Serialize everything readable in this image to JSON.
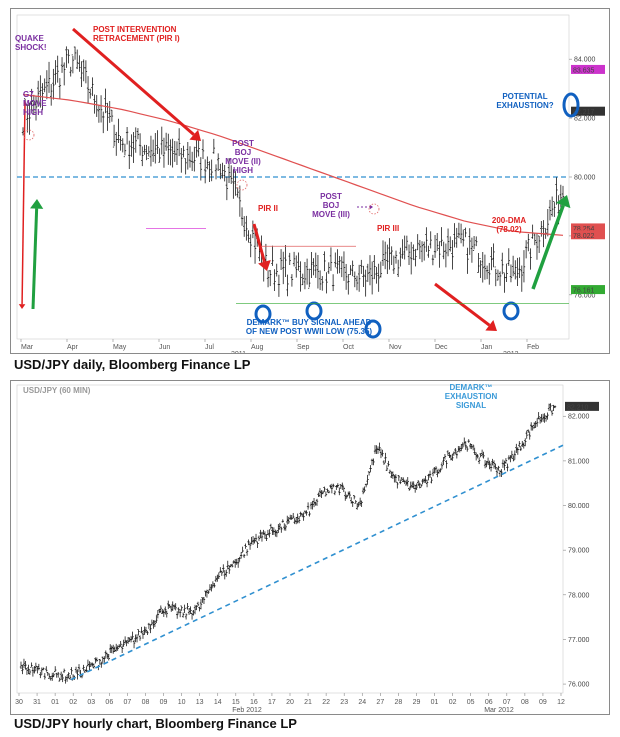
{
  "colors": {
    "price": "#1a1a1a",
    "dma": "#e05050",
    "arrow_red": "#e02020",
    "arrow_green": "#20a040",
    "purple": "#7a2ea0",
    "blue": "#1060c0",
    "dashed": "#3090d0",
    "marker_pink": "#cc33cc",
    "marker_green": "#33bb33"
  },
  "top": {
    "caption": "USD/JPY daily, Bloomberg Finance LP",
    "x_ticks": [
      "Mar",
      "Apr",
      "May",
      "Jun",
      "Jul",
      "Aug",
      "Sep",
      "Oct",
      "Nov",
      "Dec",
      "Jan",
      "Feb"
    ],
    "year_left": "2011",
    "year_right": "2012",
    "y_labels": [
      "84.000",
      "82.000",
      "80.000",
      "78.000",
      "76.000"
    ],
    "price_tags": [
      "83.635",
      "82.217",
      "78.254",
      "78.022",
      "76.161"
    ],
    "annotations": {
      "quake": "QUAKE\nSHOCK!",
      "g7": "G7\nMOVE\nHIGH",
      "pir1": "POST INTERVENTION\nRETRACEMENT (PIR I)",
      "boj2": "POST\nBOJ\nMOVE (II)\nHIGH",
      "pir2": "PIR II",
      "boj3": "POST\nBOJ\nMOVE (III)",
      "pir3": "PIR III",
      "demark": "DEMARK™ BUY SIGNAL AHEAD\nOF NEW POST WWII LOW (75.35)",
      "dma": "200-DMA\n(78.02)",
      "exhaust": "POTENTIAL\nEXHAUSTION?"
    }
  },
  "bottom": {
    "caption": "USD/JPY hourly chart, Bloomberg Finance LP",
    "title": "USD/JPY (60 MIN)",
    "signal": "DEMARK™\nEXHAUSTION\nSIGNAL",
    "price_tag": "82.210",
    "y_labels": [
      "82.000",
      "81.000",
      "80.000",
      "79.000",
      "78.000",
      "77.000",
      "76.000"
    ],
    "x_ticks": [
      "30",
      "31",
      "01",
      "02",
      "03",
      "06",
      "07",
      "08",
      "09",
      "10",
      "13",
      "14",
      "15",
      "16",
      "17",
      "20",
      "21",
      "22",
      "23",
      "24",
      "27",
      "28",
      "29",
      "01",
      "02",
      "05",
      "06",
      "07",
      "08",
      "09",
      "12"
    ],
    "month_feb": "Feb 2012",
    "month_mar": "Mar 2012"
  },
  "chart_data": [
    {
      "type": "line",
      "ylim": [
        74.5,
        85.5
      ],
      "x": [
        "Mar",
        "Apr",
        "May",
        "Jun",
        "Jul",
        "Aug",
        "Sep",
        "Oct",
        "Nov",
        "Dec",
        "Jan",
        "Feb"
      ],
      "series": [
        {
          "values": [
            82.0,
            84.0,
            81.2,
            80.8,
            80.5,
            76.8,
            76.8,
            76.6,
            77.6,
            77.7,
            76.6,
            79.5
          ]
        },
        {
          "values": [
            82.8,
            82.6,
            82.3,
            81.9,
            81.4,
            80.8,
            80.2,
            79.6,
            79.0,
            78.5,
            78.15,
            78.02
          ]
        }
      ]
    },
    {
      "type": "line",
      "title": "USD/JPY (60 MIN)",
      "ylim": [
        75.8,
        82.7
      ],
      "x": [
        "30",
        "31",
        "01",
        "02",
        "03",
        "06",
        "07",
        "08",
        "09",
        "10",
        "13",
        "14",
        "15",
        "16",
        "17",
        "20",
        "21",
        "22",
        "23",
        "24",
        "27",
        "28",
        "29",
        "01",
        "02",
        "05",
        "06",
        "07",
        "08",
        "09",
        "12"
      ],
      "series": [
        {
          "values": [
            76.4,
            76.3,
            76.2,
            76.2,
            76.4,
            76.7,
            76.9,
            77.2,
            77.7,
            77.6,
            77.7,
            78.4,
            78.7,
            79.2,
            79.4,
            79.6,
            79.8,
            80.3,
            80.4,
            80.0,
            81.3,
            80.6,
            80.4,
            80.6,
            81.1,
            81.4,
            81.0,
            80.8,
            81.3,
            81.9,
            82.2
          ]
        }
      ]
    }
  ]
}
